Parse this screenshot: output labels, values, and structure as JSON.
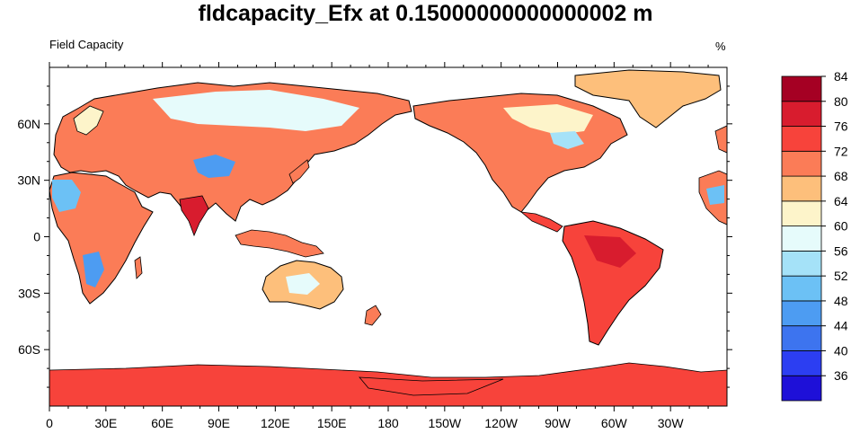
{
  "title": "fldcapacity_Efx at 0.15000000000000002 m",
  "subtitle_left": "Field Capacity",
  "units": "%",
  "lat_labels": [
    "60N",
    "30N",
    "0",
    "30S",
    "60S"
  ],
  "lon_labels": [
    "0",
    "30E",
    "60E",
    "90E",
    "120E",
    "150E",
    "180",
    "150W",
    "120W",
    "90W",
    "60W",
    "30W"
  ],
  "colorbar": {
    "colors": [
      "#1e10d8",
      "#2c3ef2",
      "#3d74ef",
      "#4d9cf2",
      "#6cc1f5",
      "#a5e2f8",
      "#e6fbfb",
      "#fdf4ca",
      "#fdbf7b",
      "#fb7c57",
      "#f7433b",
      "#d81c2e",
      "#a50023"
    ],
    "labels": [
      "36",
      "40",
      "44",
      "48",
      "52",
      "56",
      "60",
      "64",
      "68",
      "72",
      "76",
      "80",
      "84"
    ]
  },
  "colors": {
    "ocean": "#ffffff",
    "antarctica": "#f7433b",
    "coastline": "#000000"
  }
}
